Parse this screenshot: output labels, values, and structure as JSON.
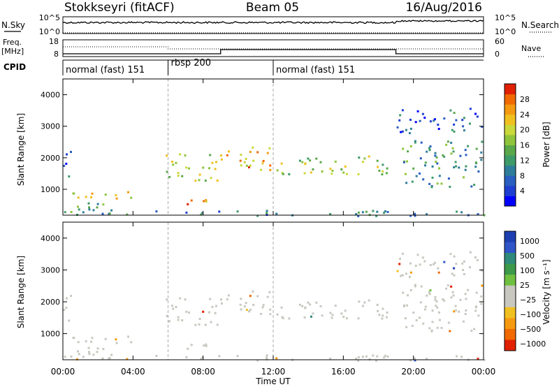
{
  "header": {
    "station": "Stokkseyri (fitACF)",
    "beam": "Beam 05",
    "date": "16/Aug/2016"
  },
  "top_panels": {
    "nsky_label": "N.Sky",
    "nsky_ticks": [
      "10^5",
      "10^0"
    ],
    "nsearch_label": "N.Search",
    "nsearch_ticks": [
      "10^5",
      "10^0"
    ],
    "freq_label": "Freq.",
    "freq_unit": "[MHz]",
    "freq_ticks": [
      "18",
      "8"
    ],
    "nave_label": "Nave",
    "nave_ticks": [
      "60",
      "0"
    ],
    "cpid_label": "CPID",
    "cpid_segments": [
      {
        "label": "normal (fast) 151",
        "start": 0,
        "end": 6
      },
      {
        "label": "rbsp 200",
        "start": 6,
        "end": 12
      },
      {
        "label": "normal (fast) 151",
        "start": 12,
        "end": 24
      }
    ]
  },
  "chart_data": [
    {
      "type": "heatmap",
      "name": "power",
      "ylabel": "Slant Range [km]",
      "xlabel": "Time UT",
      "xlim": [
        0,
        24
      ],
      "ylim": [
        180,
        4500
      ],
      "x_ticks": [
        "00:00",
        "04:00",
        "08:00",
        "12:00",
        "16:00",
        "20:00",
        "00:00"
      ],
      "y_ticks": [
        1000,
        2000,
        3000,
        4000
      ],
      "colorbar": {
        "label": "Power [dB]",
        "range": [
          0,
          32
        ],
        "ticks": [
          4,
          8,
          12,
          16,
          20,
          24,
          28
        ],
        "colors": [
          "#0000ff",
          "#1f3fd0",
          "#2a5ec0",
          "#2f7d9a",
          "#3f9a6a",
          "#5aa84a",
          "#8fc43c",
          "#c9d83a",
          "#f0c020",
          "#f59a10",
          "#f06a00",
          "#e02000"
        ]
      },
      "echo_regions": [
        {
          "t0": 0.0,
          "t1": 4.0,
          "r0": 200,
          "r1": 600,
          "p": 14
        },
        {
          "t0": 0.0,
          "t1": 4.0,
          "r0": 650,
          "r1": 950,
          "p": 20
        },
        {
          "t0": 0.0,
          "t1": 0.5,
          "r0": 1400,
          "r1": 2400,
          "p": 8
        },
        {
          "t0": 5.8,
          "t1": 9.0,
          "r0": 1300,
          "r1": 2200,
          "p": 18
        },
        {
          "t0": 6.0,
          "t1": 9.0,
          "r0": 500,
          "r1": 700,
          "p": 24
        },
        {
          "t0": 9.0,
          "t1": 12.0,
          "r0": 1600,
          "r1": 2400,
          "p": 24
        },
        {
          "t0": 12.0,
          "t1": 19.0,
          "r0": 1500,
          "r1": 2100,
          "p": 18
        },
        {
          "t0": 19.0,
          "t1": 24.0,
          "r0": 1100,
          "r1": 2600,
          "p": 12
        },
        {
          "t0": 19.0,
          "t1": 24.0,
          "r0": 2800,
          "r1": 3600,
          "p": 8
        },
        {
          "t0": 0.0,
          "t1": 24.0,
          "r0": 180,
          "r1": 350,
          "p": 10
        }
      ]
    },
    {
      "type": "heatmap",
      "name": "velocity",
      "ylabel": "Slant Range [km]",
      "xlabel": "Time UT",
      "xlim": [
        0,
        24
      ],
      "ylim": [
        180,
        4500
      ],
      "x_ticks": [
        "00:00",
        "04:00",
        "08:00",
        "12:00",
        "16:00",
        "20:00",
        "00:00"
      ],
      "y_ticks": [
        1000,
        2000,
        3000,
        4000
      ],
      "colorbar": {
        "label": "Velocity [m s⁻¹]",
        "ticks": [
          "1000",
          "500",
          "100",
          "25",
          "−25",
          "−100",
          "−500",
          "−1000"
        ],
        "colors": [
          "#1d3fb0",
          "#2f55c8",
          "#2f8a7a",
          "#3c9a4a",
          "#6fc040",
          "#c8c8c0",
          "#c8c8c0",
          "#f0c020",
          "#f59a10",
          "#f06a00",
          "#e02000"
        ]
      },
      "ground_scatter_color": "#c8c8c0"
    }
  ]
}
